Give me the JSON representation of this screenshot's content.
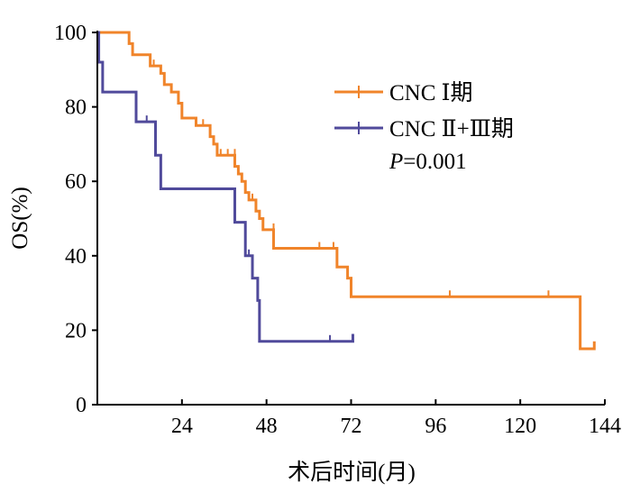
{
  "chart_data": {
    "type": "line",
    "step": true,
    "xlabel": "术后时间(月)",
    "ylabel": "OS(%)",
    "xlim": [
      0,
      144
    ],
    "ylim": [
      0,
      100
    ],
    "xticks": [
      24,
      48,
      72,
      96,
      120,
      144
    ],
    "yticks": [
      0,
      20,
      40,
      60,
      80,
      100
    ],
    "grid": false,
    "legend_position": "top-right",
    "annotation": {
      "italic": "P",
      "rest": "=0.001"
    },
    "series": [
      {
        "name": "CNC Ⅰ期",
        "color": "#f0842a",
        "points": [
          [
            0,
            100
          ],
          [
            7,
            100
          ],
          [
            9,
            97
          ],
          [
            10,
            94
          ],
          [
            14,
            94
          ],
          [
            15,
            91
          ],
          [
            17,
            91
          ],
          [
            18,
            89
          ],
          [
            19,
            86
          ],
          [
            21,
            84
          ],
          [
            23,
            81
          ],
          [
            24,
            77
          ],
          [
            27,
            77
          ],
          [
            28,
            75
          ],
          [
            31,
            75
          ],
          [
            32,
            72
          ],
          [
            33,
            70
          ],
          [
            34,
            67
          ],
          [
            38,
            67
          ],
          [
            39,
            64
          ],
          [
            40,
            62
          ],
          [
            41,
            60
          ],
          [
            42,
            57
          ],
          [
            43,
            55
          ],
          [
            45,
            52
          ],
          [
            46,
            50
          ],
          [
            47,
            47
          ],
          [
            49,
            47
          ],
          [
            50,
            42
          ],
          [
            54,
            42
          ],
          [
            55,
            42
          ],
          [
            65,
            42
          ],
          [
            67,
            42
          ],
          [
            68,
            37
          ],
          [
            70,
            37
          ],
          [
            71,
            34
          ],
          [
            72,
            29
          ],
          [
            136,
            29
          ],
          [
            137,
            15
          ],
          [
            140,
            15
          ],
          [
            141,
            17
          ]
        ],
        "censored": [
          [
            16,
            91
          ],
          [
            30,
            75
          ],
          [
            35,
            67
          ],
          [
            37,
            67
          ],
          [
            39,
            67
          ],
          [
            44,
            55
          ],
          [
            47,
            47
          ],
          [
            50,
            47
          ],
          [
            63,
            42
          ],
          [
            67,
            42
          ],
          [
            100,
            29
          ],
          [
            128,
            29
          ],
          [
            141,
            15
          ]
        ]
      },
      {
        "name": "CNC Ⅱ+Ⅲ期",
        "color": "#504a9b",
        "points": [
          [
            0,
            100
          ],
          [
            0.4,
            92
          ],
          [
            1.5,
            84
          ],
          [
            10,
            84
          ],
          [
            11,
            76
          ],
          [
            16,
            76
          ],
          [
            16.5,
            67
          ],
          [
            17.5,
            67
          ],
          [
            18,
            58
          ],
          [
            38,
            58
          ],
          [
            39,
            49
          ],
          [
            41,
            49
          ],
          [
            42,
            40
          ],
          [
            43,
            40
          ],
          [
            44,
            34
          ],
          [
            44.7,
            34
          ],
          [
            45.5,
            28
          ],
          [
            46,
            17
          ],
          [
            72,
            17
          ],
          [
            72.5,
            19
          ]
        ],
        "censored": [
          [
            14,
            76
          ],
          [
            43,
            40
          ],
          [
            66,
            17
          ]
        ]
      }
    ]
  }
}
